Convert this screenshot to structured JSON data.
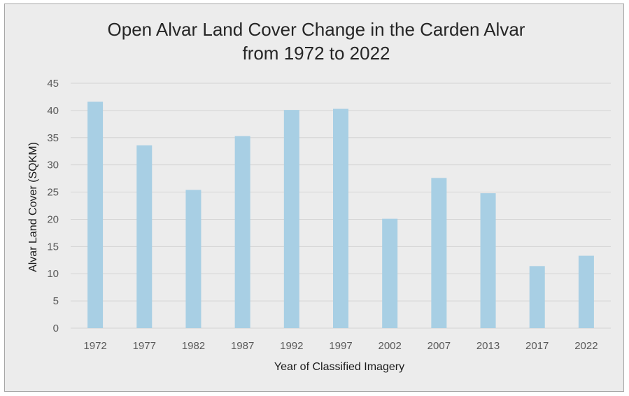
{
  "chart_data": {
    "type": "bar",
    "title": "Open Alvar Land Cover Change in the Carden Alvar from 1972 to 2022",
    "title_lines": [
      "Open Alvar Land Cover Change in the Carden Alvar",
      "from 1972 to 2022"
    ],
    "xlabel": "Year of Classified Imagery",
    "ylabel": "Alvar Land Cover (SQKM)",
    "categories": [
      "1972",
      "1977",
      "1982",
      "1987",
      "1992",
      "1997",
      "2002",
      "2007",
      "2013",
      "2017",
      "2022"
    ],
    "values": [
      41.6,
      33.6,
      25.4,
      35.3,
      40.1,
      40.3,
      20.1,
      27.6,
      24.8,
      11.4,
      13.3
    ],
    "ylim": [
      0,
      45
    ],
    "yticks": [
      0,
      5,
      10,
      15,
      20,
      25,
      30,
      35,
      40,
      45
    ],
    "grid": true,
    "legend": "none",
    "colors": {
      "bar": "#a8cfe4",
      "grid": "#d4d4d4",
      "background": "#ececec"
    }
  }
}
